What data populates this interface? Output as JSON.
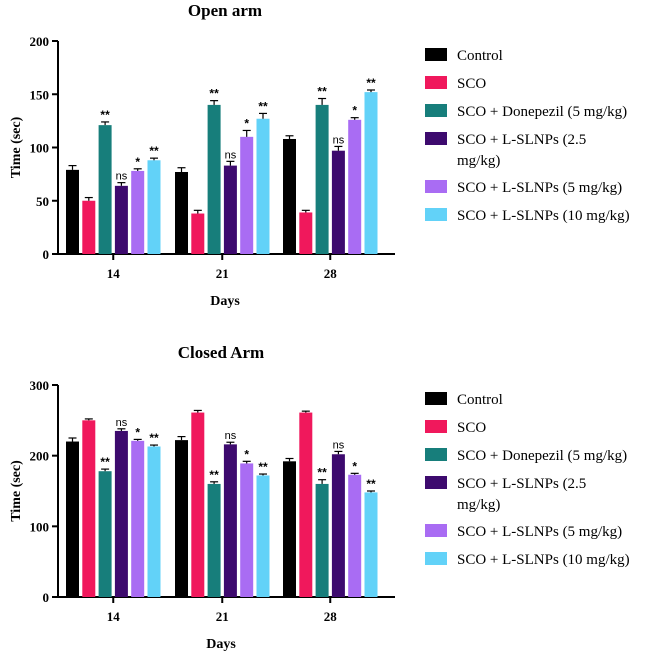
{
  "chart_data": [
    {
      "type": "bar",
      "title": "Open arm",
      "xlabel": "Days",
      "ylabel": "Time (sec)",
      "ylim": [
        0,
        200
      ],
      "yticks": [
        0,
        50,
        100,
        150,
        200
      ],
      "categories": [
        "14",
        "21",
        "28"
      ],
      "series": [
        {
          "name": "Control",
          "color": "#000000",
          "values": [
            79,
            77,
            108
          ],
          "errors": [
            4,
            4,
            3
          ],
          "sig": [
            "",
            "",
            ""
          ]
        },
        {
          "name": "SCO",
          "color": "#f0185c",
          "values": [
            50,
            38,
            39
          ],
          "errors": [
            3,
            3,
            2
          ],
          "sig": [
            "",
            "",
            ""
          ]
        },
        {
          "name": "SCO + Donepezil (5 mg/kg)",
          "color": "#177e7b",
          "values": [
            121,
            140,
            140
          ],
          "errors": [
            3,
            4,
            6
          ],
          "sig": [
            "**",
            "**",
            "**"
          ]
        },
        {
          "name": "SCO + L-SLNPs (2.5 mg/kg)",
          "color": "#3d0a6e",
          "values": [
            64,
            83,
            97
          ],
          "errors": [
            3,
            4,
            4
          ],
          "sig": [
            "ns",
            "ns",
            "ns"
          ]
        },
        {
          "name": "SCO + L-SLNPs (5 mg/kg)",
          "color": "#a96cf3",
          "values": [
            78,
            110,
            126
          ],
          "errors": [
            2,
            6,
            2
          ],
          "sig": [
            "*",
            "*",
            "*"
          ]
        },
        {
          "name": "SCO + L-SLNPs (10 mg/kg)",
          "color": "#62d2f8",
          "values": [
            88,
            127,
            152
          ],
          "errors": [
            2,
            5,
            2
          ],
          "sig": [
            "**",
            "**",
            "**"
          ]
        }
      ]
    },
    {
      "type": "bar",
      "title": "Closed Arm",
      "xlabel": "Days",
      "ylabel": "Time (sec)",
      "ylim": [
        0,
        300
      ],
      "yticks": [
        0,
        100,
        200,
        300
      ],
      "categories": [
        "14",
        "21",
        "28"
      ],
      "series": [
        {
          "name": "Control",
          "color": "#000000",
          "values": [
            220,
            222,
            192
          ],
          "errors": [
            5,
            5,
            4
          ],
          "sig": [
            "",
            "",
            ""
          ]
        },
        {
          "name": "SCO",
          "color": "#f0185c",
          "values": [
            250,
            261,
            261
          ],
          "errors": [
            2,
            3,
            2
          ],
          "sig": [
            "",
            "",
            ""
          ]
        },
        {
          "name": "SCO + Donepezil (5 mg/kg)",
          "color": "#177e7b",
          "values": [
            178,
            160,
            160
          ],
          "errors": [
            3,
            3,
            6
          ],
          "sig": [
            "**",
            "**",
            "**"
          ]
        },
        {
          "name": "SCO + L-SLNPs (2.5 mg/kg)",
          "color": "#3d0a6e",
          "values": [
            235,
            216,
            202
          ],
          "errors": [
            3,
            3,
            4
          ],
          "sig": [
            "ns",
            "ns",
            "ns"
          ]
        },
        {
          "name": "SCO + L-SLNPs (5 mg/kg)",
          "color": "#a96cf3",
          "values": [
            221,
            189,
            173
          ],
          "errors": [
            2,
            3,
            2
          ],
          "sig": [
            "*",
            "*",
            "*"
          ]
        },
        {
          "name": "SCO + L-SLNPs (10 mg/kg)",
          "color": "#62d2f8",
          "values": [
            213,
            172,
            148
          ],
          "errors": [
            2,
            2,
            2
          ],
          "sig": [
            "**",
            "**",
            "**"
          ]
        }
      ]
    }
  ]
}
